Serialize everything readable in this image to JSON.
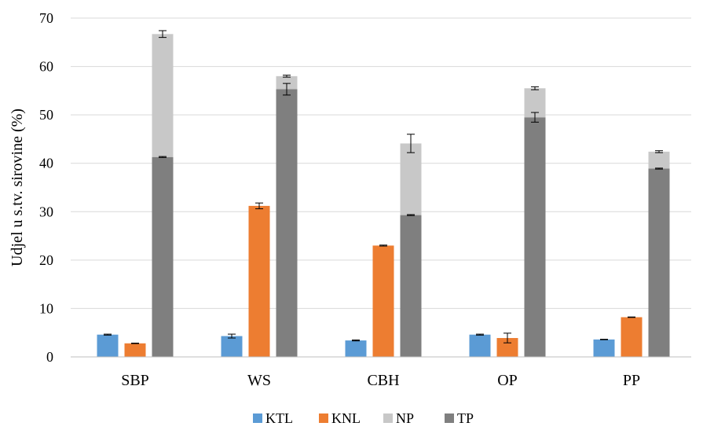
{
  "chart_data": {
    "type": "bar",
    "stacked_series": [
      "TP",
      "NP"
    ],
    "ylabel": "Udjel u s.tv. sirovine (%)",
    "xlabel": "",
    "ylim": [
      0,
      70
    ],
    "yticks": [
      0,
      10,
      20,
      30,
      40,
      50,
      60,
      70
    ],
    "grid": true,
    "legend_position": "bottom",
    "categories": [
      "SBP",
      "WS",
      "CBH",
      "OP",
      "PP"
    ],
    "series": [
      {
        "name": "KTL",
        "color": "#5b9bd5",
        "values": [
          4.6,
          4.3,
          3.4,
          4.6,
          3.6
        ],
        "errors": [
          0.1,
          0.4,
          0.1,
          0.1,
          0.05
        ]
      },
      {
        "name": "KNL",
        "color": "#ed7d31",
        "values": [
          2.8,
          31.2,
          23.0,
          3.9,
          8.2
        ],
        "errors": [
          0.05,
          0.6,
          0.1,
          1.0,
          0.05
        ]
      },
      {
        "name": "NP",
        "color": "#c8c8c8",
        "values": [
          25.4,
          2.7,
          14.8,
          6.0,
          3.5
        ],
        "totals": [
          66.7,
          58.0,
          44.1,
          55.5,
          42.4
        ],
        "errors": [
          0.7,
          0.2,
          1.9,
          0.3,
          0.2
        ]
      },
      {
        "name": "TP",
        "color": "#7f7f7f",
        "values": [
          41.3,
          55.3,
          29.3,
          49.5,
          38.9
        ],
        "errors": [
          0.1,
          1.2,
          0.1,
          1.0,
          0.1
        ]
      }
    ]
  }
}
